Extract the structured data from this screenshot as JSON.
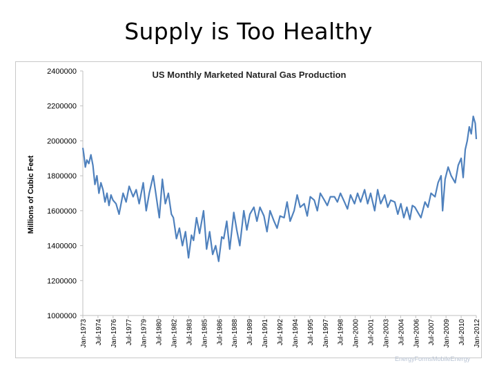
{
  "slide": {
    "title": "Supply is Too Healthy"
  },
  "chart_data": {
    "type": "line",
    "title": "US Monthly Marketed Natural Gas Production",
    "xlabel": "",
    "ylabel": "Millions of Cubic Feet",
    "ylim": [
      1000000,
      2400000
    ],
    "yticks": [
      1000000,
      1200000,
      1400000,
      1600000,
      1800000,
      2000000,
      2200000,
      2400000
    ],
    "ytick_labels": [
      "1000000",
      "1200000",
      "1400000",
      "1600000",
      "1800000",
      "2000000",
      "2200000",
      "2400000"
    ],
    "xlim": [
      1973.0,
      2012.1
    ],
    "xtick_labels": [
      "Jan-1973",
      "Jul-1974",
      "Jan-1976",
      "Jul-1977",
      "Jan-1979",
      "Jul-1980",
      "Jan-1982",
      "Jul-1983",
      "Jan-1985",
      "Jul-1986",
      "Jan-1988",
      "Jul-1989",
      "Jan-1991",
      "Jul-1992",
      "Jan-1994",
      "Jul-1995",
      "Jan-1997",
      "Jul-1998",
      "Jan-2000",
      "Jul-2001",
      "Jan-2003",
      "Jul-2004",
      "Jan-2006",
      "Jul-2007",
      "Jan-2009",
      "Jul-2010",
      "Jan-2012"
    ],
    "grid": false,
    "legend": "none",
    "line_color": "#4f81bd",
    "series": [
      {
        "name": "Marketed Natural Gas Production",
        "x": [
          1973.0,
          1973.1,
          1973.25,
          1973.4,
          1973.6,
          1973.8,
          1974.0,
          1974.2,
          1974.4,
          1974.6,
          1974.8,
          1975.0,
          1975.2,
          1975.4,
          1975.6,
          1975.8,
          1976.0,
          1976.3,
          1976.6,
          1977.0,
          1977.3,
          1977.6,
          1978.0,
          1978.3,
          1978.6,
          1979.0,
          1979.3,
          1979.6,
          1980.0,
          1980.3,
          1980.6,
          1980.9,
          1981.2,
          1981.5,
          1981.8,
          1982.0,
          1982.3,
          1982.6,
          1982.9,
          1983.2,
          1983.5,
          1983.8,
          1984.0,
          1984.3,
          1984.6,
          1985.0,
          1985.3,
          1985.6,
          1985.9,
          1986.2,
          1986.5,
          1986.8,
          1987.0,
          1987.3,
          1987.6,
          1988.0,
          1988.3,
          1988.6,
          1989.0,
          1989.3,
          1989.6,
          1990.0,
          1990.3,
          1990.6,
          1991.0,
          1991.3,
          1991.6,
          1992.0,
          1992.3,
          1992.6,
          1993.0,
          1993.3,
          1993.6,
          1994.0,
          1994.3,
          1994.6,
          1995.0,
          1995.3,
          1995.6,
          1996.0,
          1996.3,
          1996.6,
          1997.0,
          1997.3,
          1997.6,
          1998.0,
          1998.3,
          1998.6,
          1999.0,
          1999.3,
          1999.6,
          2000.0,
          2000.3,
          2000.6,
          2001.0,
          2001.3,
          2001.6,
          2002.0,
          2002.3,
          2002.6,
          2003.0,
          2003.3,
          2003.6,
          2004.0,
          2004.3,
          2004.6,
          2004.9,
          2005.2,
          2005.5,
          2005.75,
          2006.0,
          2006.3,
          2006.6,
          2007.0,
          2007.3,
          2007.6,
          2008.0,
          2008.3,
          2008.6,
          2008.75,
          2009.0,
          2009.3,
          2009.6,
          2010.0,
          2010.3,
          2010.6,
          2010.8,
          2011.0,
          2011.2,
          2011.4,
          2011.6,
          2011.8,
          2012.0,
          2012.1
        ],
        "values": [
          1960000,
          1920000,
          1850000,
          1890000,
          1870000,
          1920000,
          1860000,
          1750000,
          1800000,
          1700000,
          1760000,
          1720000,
          1650000,
          1700000,
          1630000,
          1690000,
          1660000,
          1640000,
          1580000,
          1700000,
          1650000,
          1740000,
          1680000,
          1720000,
          1640000,
          1760000,
          1600000,
          1700000,
          1800000,
          1680000,
          1560000,
          1780000,
          1640000,
          1700000,
          1580000,
          1560000,
          1440000,
          1500000,
          1400000,
          1480000,
          1330000,
          1460000,
          1430000,
          1560000,
          1470000,
          1600000,
          1380000,
          1480000,
          1350000,
          1400000,
          1310000,
          1450000,
          1440000,
          1540000,
          1380000,
          1590000,
          1490000,
          1400000,
          1600000,
          1490000,
          1580000,
          1620000,
          1540000,
          1620000,
          1570000,
          1480000,
          1600000,
          1540000,
          1500000,
          1570000,
          1560000,
          1650000,
          1540000,
          1600000,
          1690000,
          1620000,
          1640000,
          1570000,
          1680000,
          1660000,
          1600000,
          1700000,
          1660000,
          1630000,
          1680000,
          1680000,
          1650000,
          1700000,
          1650000,
          1610000,
          1690000,
          1640000,
          1700000,
          1650000,
          1720000,
          1640000,
          1700000,
          1600000,
          1720000,
          1640000,
          1690000,
          1620000,
          1660000,
          1650000,
          1580000,
          1640000,
          1560000,
          1620000,
          1550000,
          1630000,
          1620000,
          1590000,
          1560000,
          1650000,
          1620000,
          1700000,
          1680000,
          1760000,
          1800000,
          1600000,
          1780000,
          1850000,
          1800000,
          1760000,
          1860000,
          1900000,
          1790000,
          1950000,
          2000000,
          2080000,
          2040000,
          2140000,
          2100000,
          2010000
        ]
      }
    ]
  },
  "watermark": {
    "text": "EnergyFormsMobileEnergy"
  }
}
